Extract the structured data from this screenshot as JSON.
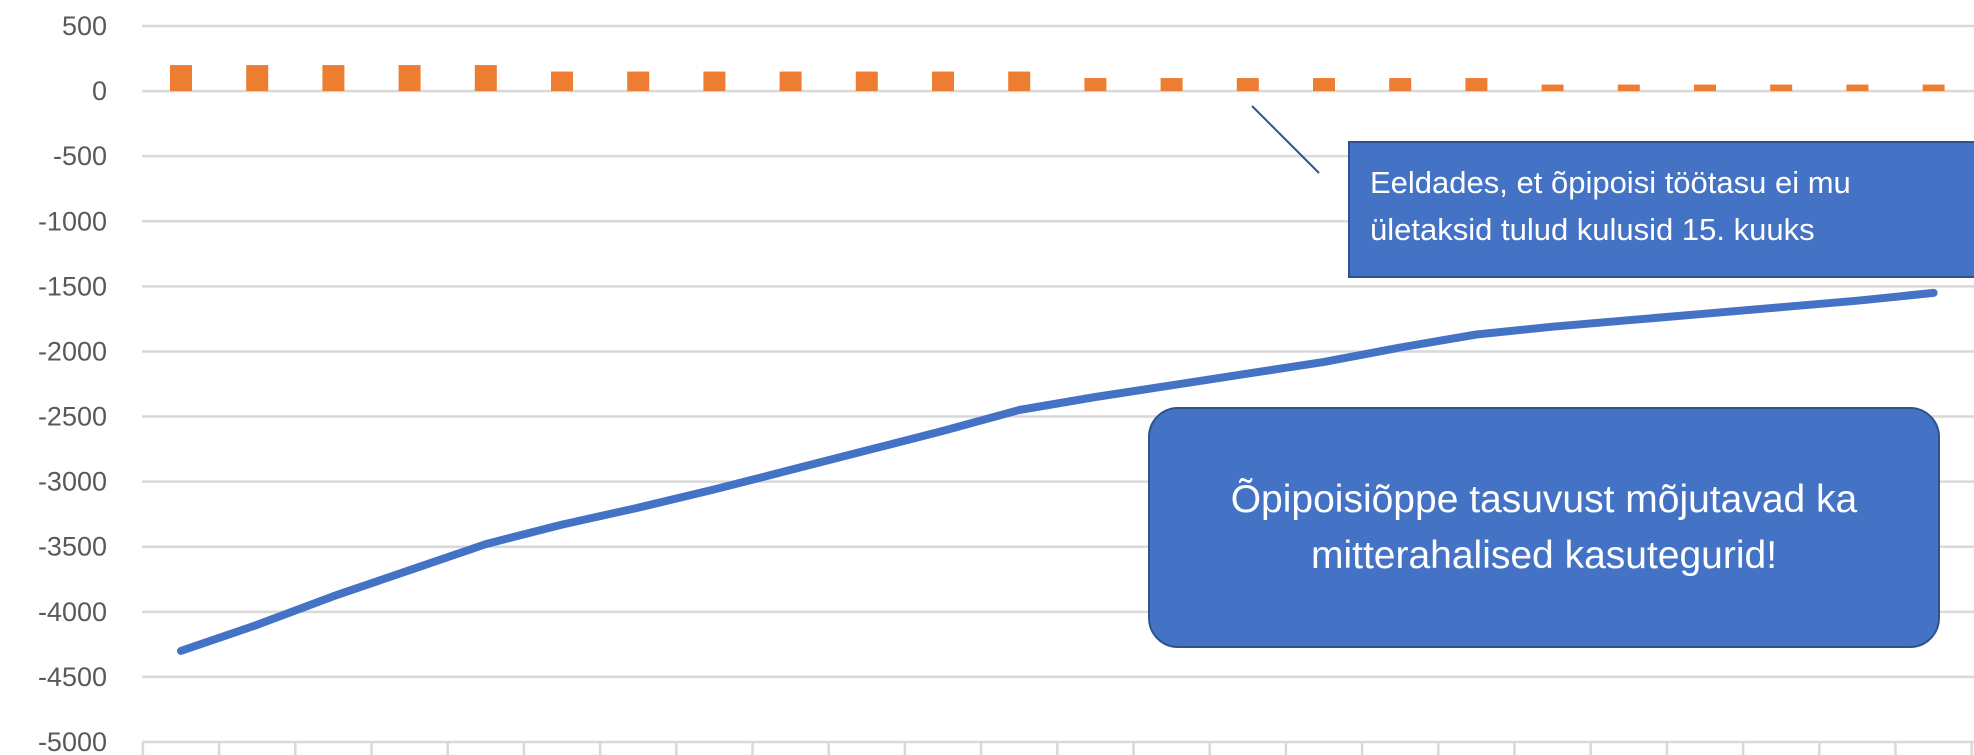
{
  "chart_data": {
    "type": "bar+line",
    "ylim": [
      -5000,
      500
    ],
    "yticks": [
      500,
      0,
      -500,
      -1000,
      -1500,
      -2000,
      -2500,
      -3000,
      -3500,
      -4000,
      -4500,
      -5000
    ],
    "grid": true,
    "bar_series": {
      "color": "#ed7d31",
      "values": [
        200,
        200,
        200,
        200,
        200,
        150,
        150,
        150,
        150,
        150,
        150,
        150,
        100,
        100,
        100,
        100,
        100,
        100,
        50,
        50,
        50,
        50,
        50,
        50
      ]
    },
    "line_series": {
      "color": "#4472c4",
      "values": [
        -4300,
        -4100,
        -3880,
        -3680,
        -3480,
        -3330,
        -3200,
        -3060,
        -2910,
        -2760,
        -2610,
        -2450,
        -2350,
        -2260,
        -2170,
        -2080,
        -1970,
        -1870,
        -1810,
        -1760,
        -1710,
        -1660,
        -1610,
        -1550
      ]
    }
  },
  "annotations": {
    "callout_line1": "Eeldades, et õpipoisi töötasu ei mu",
    "callout_line2": "ületaksid tulud kulusid 15. kuuks",
    "bubble_line1": "Õpipoisiõppe tasuvust mõjutavad ka",
    "bubble_line2": "mitterahalised kasutegurid!"
  },
  "colors": {
    "grid": "#d9d9d9",
    "axis_text": "#595959",
    "box_fill": "#4472c4",
    "box_border": "#2f528f"
  }
}
